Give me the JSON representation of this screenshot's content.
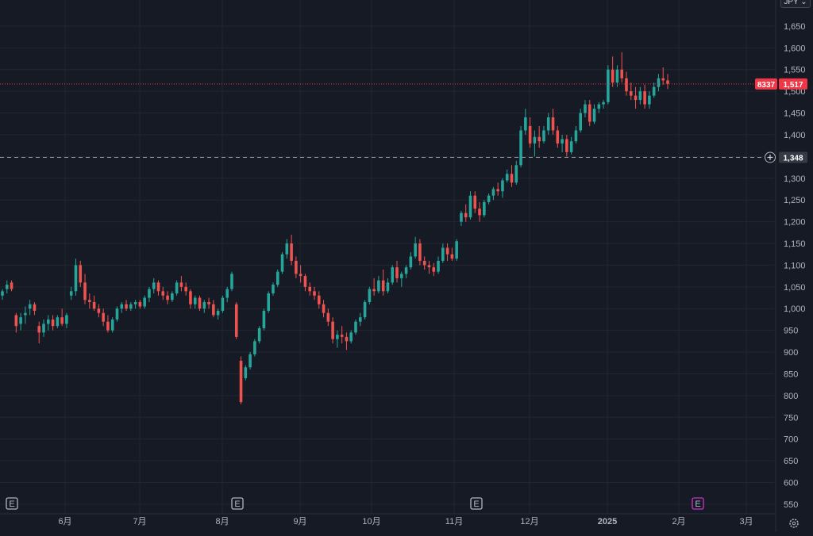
{
  "currency_selector": {
    "label": "JPY ⌄"
  },
  "price_axis": {
    "ticks": [
      "1,650",
      "1,600",
      "1,550",
      "1,500",
      "1,450",
      "1,400",
      "1,350",
      "1,300",
      "1,250",
      "1,200",
      "1,150",
      "1,100",
      "1,050",
      "1,000",
      "950",
      "900",
      "850",
      "800",
      "750",
      "700",
      "650",
      "600",
      "550"
    ]
  },
  "time_axis": {
    "labels": [
      "6月",
      "7月",
      "8月",
      "9月",
      "10月",
      "11月",
      "12月",
      "2025",
      "2月",
      "3月"
    ]
  },
  "last_price": {
    "symbol": "8337",
    "value": "1,517"
  },
  "crosshair_price": {
    "value": "1,348"
  },
  "earnings_markers": [
    {
      "label": "E",
      "color": "#b2b5be"
    },
    {
      "label": "E",
      "color": "#b2b5be"
    },
    {
      "label": "E",
      "color": "#b2b5be"
    },
    {
      "label": "E",
      "color": "#cc33cc"
    }
  ],
  "colors": {
    "up": "#26a69a",
    "down": "#ef5350",
    "background": "#161a25",
    "grid": "#222631",
    "last_price_line": "#f23645"
  },
  "chart_data": {
    "type": "candlestick",
    "symbol": "8337",
    "currency": "JPY",
    "ylim": [
      550,
      1650
    ],
    "last": 1517,
    "crosshair": 1348,
    "x_labels": [
      "6月",
      "7月",
      "8月",
      "9月",
      "10月",
      "11月",
      "12月",
      "2025",
      "2月",
      "3月"
    ],
    "candles_ohlc": [
      [
        1030,
        1045,
        1020,
        1040
      ],
      [
        1045,
        1065,
        1035,
        1055
      ],
      [
        1060,
        1065,
        1040,
        1045
      ],
      [
        985,
        990,
        945,
        960
      ],
      [
        965,
        990,
        950,
        980
      ],
      [
        985,
        1005,
        965,
        990
      ],
      [
        1000,
        1020,
        985,
        1010
      ],
      [
        1010,
        1015,
        985,
        995
      ],
      [
        960,
        970,
        920,
        945
      ],
      [
        945,
        975,
        935,
        965
      ],
      [
        965,
        985,
        950,
        975
      ],
      [
        975,
        985,
        950,
        960
      ],
      [
        960,
        985,
        955,
        980
      ],
      [
        980,
        1000,
        960,
        965
      ],
      [
        965,
        990,
        955,
        985
      ],
      [
        1030,
        1050,
        1020,
        1040
      ],
      [
        1040,
        1115,
        1030,
        1100
      ],
      [
        1100,
        1110,
        1050,
        1060
      ],
      [
        1060,
        1080,
        1010,
        1020
      ],
      [
        1020,
        1035,
        1000,
        1015
      ],
      [
        1015,
        1030,
        995,
        1000
      ],
      [
        1000,
        1010,
        980,
        990
      ],
      [
        990,
        1000,
        960,
        970
      ],
      [
        970,
        985,
        945,
        950
      ],
      [
        950,
        980,
        945,
        975
      ],
      [
        975,
        1005,
        970,
        1000
      ],
      [
        1000,
        1015,
        990,
        1010
      ],
      [
        1010,
        1020,
        995,
        1000
      ],
      [
        1000,
        1015,
        995,
        1010
      ],
      [
        1010,
        1020,
        1000,
        1015
      ],
      [
        1015,
        1020,
        1000,
        1005
      ],
      [
        1005,
        1030,
        1000,
        1025
      ],
      [
        1025,
        1050,
        1015,
        1045
      ],
      [
        1045,
        1070,
        1035,
        1060
      ],
      [
        1060,
        1065,
        1030,
        1040
      ],
      [
        1040,
        1050,
        1020,
        1030
      ],
      [
        1030,
        1040,
        1010,
        1020
      ],
      [
        1020,
        1040,
        1015,
        1035
      ],
      [
        1035,
        1065,
        1030,
        1060
      ],
      [
        1060,
        1075,
        1040,
        1050
      ],
      [
        1050,
        1060,
        1030,
        1040
      ],
      [
        1040,
        1045,
        1000,
        1010
      ],
      [
        1010,
        1030,
        1000,
        1025
      ],
      [
        1025,
        1030,
        995,
        1000
      ],
      [
        1000,
        1020,
        990,
        1015
      ],
      [
        1015,
        1025,
        1000,
        1010
      ],
      [
        1010,
        1020,
        980,
        985
      ],
      [
        985,
        1000,
        975,
        995
      ],
      [
        995,
        1030,
        990,
        1025
      ],
      [
        1025,
        1050,
        1015,
        1045
      ],
      [
        1045,
        1085,
        1040,
        1080
      ],
      [
        1010,
        1015,
        930,
        935
      ],
      [
        880,
        890,
        780,
        785
      ],
      [
        840,
        870,
        835,
        865
      ],
      [
        865,
        900,
        860,
        895
      ],
      [
        895,
        930,
        890,
        925
      ],
      [
        925,
        960,
        920,
        955
      ],
      [
        955,
        1000,
        950,
        995
      ],
      [
        995,
        1040,
        990,
        1035
      ],
      [
        1035,
        1060,
        1030,
        1055
      ],
      [
        1055,
        1090,
        1050,
        1085
      ],
      [
        1085,
        1130,
        1080,
        1125
      ],
      [
        1125,
        1160,
        1115,
        1150
      ],
      [
        1150,
        1170,
        1100,
        1110
      ],
      [
        1110,
        1120,
        1070,
        1080
      ],
      [
        1080,
        1100,
        1060,
        1075
      ],
      [
        1075,
        1080,
        1040,
        1050
      ],
      [
        1050,
        1060,
        1030,
        1040
      ],
      [
        1040,
        1050,
        1020,
        1030
      ],
      [
        1030,
        1040,
        1000,
        1010
      ],
      [
        1010,
        1020,
        980,
        990
      ],
      [
        990,
        1000,
        960,
        970
      ],
      [
        970,
        980,
        920,
        930
      ],
      [
        930,
        950,
        910,
        940
      ],
      [
        940,
        960,
        920,
        935
      ],
      [
        935,
        945,
        905,
        925
      ],
      [
        925,
        950,
        920,
        945
      ],
      [
        945,
        975,
        940,
        970
      ],
      [
        970,
        990,
        960,
        980
      ],
      [
        980,
        1020,
        975,
        1015
      ],
      [
        1015,
        1050,
        1010,
        1045
      ],
      [
        1045,
        1070,
        1030,
        1040
      ],
      [
        1040,
        1075,
        1035,
        1065
      ],
      [
        1065,
        1090,
        1030,
        1040
      ],
      [
        1040,
        1070,
        1035,
        1060
      ],
      [
        1060,
        1100,
        1055,
        1095
      ],
      [
        1095,
        1110,
        1060,
        1070
      ],
      [
        1070,
        1085,
        1050,
        1080
      ],
      [
        1080,
        1100,
        1070,
        1095
      ],
      [
        1095,
        1130,
        1090,
        1120
      ],
      [
        1120,
        1165,
        1115,
        1150
      ],
      [
        1150,
        1160,
        1100,
        1110
      ],
      [
        1110,
        1120,
        1090,
        1100
      ],
      [
        1100,
        1110,
        1080,
        1095
      ],
      [
        1095,
        1105,
        1075,
        1085
      ],
      [
        1085,
        1120,
        1080,
        1110
      ],
      [
        1110,
        1150,
        1105,
        1140
      ],
      [
        1140,
        1150,
        1110,
        1125
      ],
      [
        1125,
        1140,
        1110,
        1115
      ],
      [
        1115,
        1160,
        1110,
        1155
      ],
      [
        1200,
        1225,
        1190,
        1220
      ],
      [
        1220,
        1240,
        1200,
        1210
      ],
      [
        1210,
        1270,
        1205,
        1260
      ],
      [
        1260,
        1270,
        1220,
        1230
      ],
      [
        1230,
        1245,
        1200,
        1215
      ],
      [
        1215,
        1250,
        1210,
        1245
      ],
      [
        1245,
        1265,
        1240,
        1260
      ],
      [
        1260,
        1280,
        1250,
        1275
      ],
      [
        1275,
        1290,
        1260,
        1270
      ],
      [
        1270,
        1300,
        1255,
        1295
      ],
      [
        1295,
        1320,
        1290,
        1310
      ],
      [
        1310,
        1330,
        1280,
        1290
      ],
      [
        1290,
        1340,
        1285,
        1330
      ],
      [
        1330,
        1420,
        1325,
        1410
      ],
      [
        1410,
        1460,
        1400,
        1440
      ],
      [
        1420,
        1440,
        1370,
        1380
      ],
      [
        1380,
        1410,
        1350,
        1395
      ],
      [
        1395,
        1420,
        1370,
        1385
      ],
      [
        1385,
        1420,
        1380,
        1410
      ],
      [
        1410,
        1450,
        1400,
        1440
      ],
      [
        1440,
        1460,
        1400,
        1410
      ],
      [
        1410,
        1420,
        1370,
        1380
      ],
      [
        1380,
        1400,
        1360,
        1390
      ],
      [
        1390,
        1400,
        1350,
        1360
      ],
      [
        1360,
        1395,
        1355,
        1385
      ],
      [
        1385,
        1420,
        1380,
        1410
      ],
      [
        1410,
        1460,
        1405,
        1450
      ],
      [
        1450,
        1480,
        1440,
        1470
      ],
      [
        1470,
        1480,
        1420,
        1430
      ],
      [
        1430,
        1470,
        1425,
        1460
      ],
      [
        1460,
        1475,
        1450,
        1470
      ],
      [
        1470,
        1480,
        1460,
        1475
      ],
      [
        1475,
        1560,
        1470,
        1550
      ],
      [
        1550,
        1580,
        1510,
        1520
      ],
      [
        1520,
        1560,
        1510,
        1550
      ],
      [
        1550,
        1590,
        1520,
        1530
      ],
      [
        1530,
        1545,
        1490,
        1500
      ],
      [
        1500,
        1520,
        1480,
        1490
      ],
      [
        1490,
        1510,
        1460,
        1480
      ],
      [
        1480,
        1510,
        1470,
        1500
      ],
      [
        1500,
        1515,
        1460,
        1470
      ],
      [
        1470,
        1500,
        1460,
        1490
      ],
      [
        1490,
        1520,
        1485,
        1510
      ],
      [
        1510,
        1540,
        1500,
        1530
      ],
      [
        1530,
        1555,
        1515,
        1525
      ],
      [
        1525,
        1540,
        1505,
        1517
      ]
    ]
  }
}
